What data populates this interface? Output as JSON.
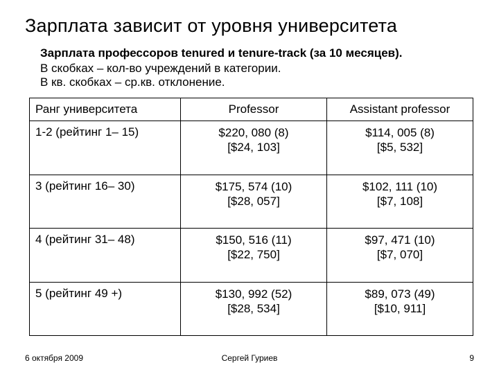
{
  "title": "Зарплата зависит от уровня университета",
  "subtitle": {
    "bold": "Зарплата профессоров tenured и tenure-track (за 10 месяцев).",
    "line2": "В скобках – кол-во учреждений в категории.",
    "line3": "В кв. скобках – ср.кв. отклонение."
  },
  "table": {
    "columns": [
      "Ранг университета",
      "Professor",
      "Assistant professor"
    ],
    "rows": [
      {
        "rank": "1-2 (рейтинг 1– 15)",
        "prof_main": "$220, 080 (8)",
        "prof_sd": "[$24, 103]",
        "asst_main": "$114, 005 (8)",
        "asst_sd": "[$5, 532]"
      },
      {
        "rank": "3 (рейтинг 16– 30)",
        "prof_main": "$175, 574 (10)",
        "prof_sd": "[$28, 057]",
        "asst_main": "$102, 111 (10)",
        "asst_sd": "[$7, 108]"
      },
      {
        "rank": "4 (рейтинг 31– 48)",
        "prof_main": "$150, 516 (11)",
        "prof_sd": "[$22, 750]",
        "asst_main": "$97, 471 (10)",
        "asst_sd": "[$7, 070]"
      },
      {
        "rank": "5 (рейтинг 49 +)",
        "prof_main": "$130, 992 (52)",
        "prof_sd": "[$28, 534]",
        "asst_main": "$89, 073 (49)",
        "asst_sd": "[$10, 911]"
      }
    ]
  },
  "footer": {
    "date": "6 октября 2009",
    "author": "Сергей Гуриев",
    "page": "9"
  },
  "colors": {
    "background": "#ffffff",
    "text": "#000000",
    "border": "#000000"
  }
}
